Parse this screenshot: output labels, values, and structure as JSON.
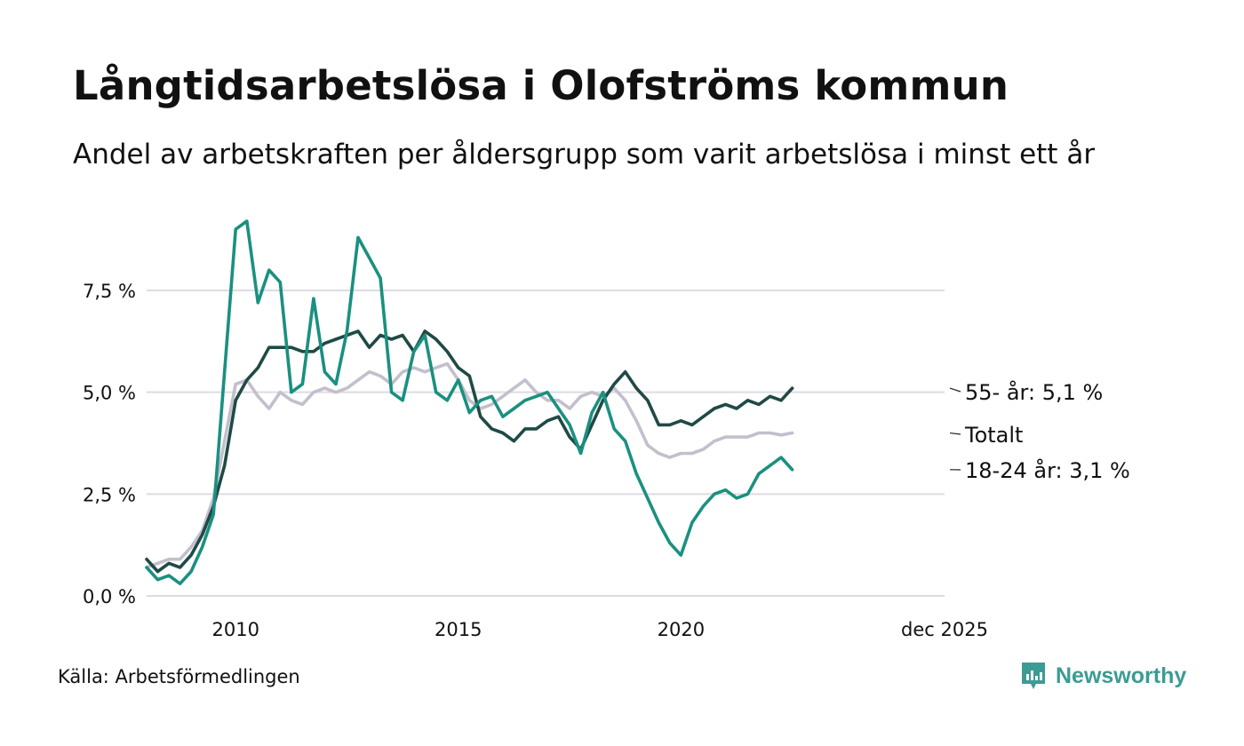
{
  "chart_data": {
    "type": "line",
    "title": "Långtidsarbetslösa i Olofströms kommun",
    "subtitle": "Andel av arbetskraften per åldersgrupp som varit arbetslösa i minst ett år",
    "xlabel": "",
    "ylabel": "",
    "x_start": 2008.0,
    "x_step": 0.25,
    "xlim": [
      2008.0,
      2025.92
    ],
    "ylim": [
      0,
      9.5
    ],
    "grid": true,
    "y_ticks": [
      {
        "value": 0,
        "label": "0,0 %"
      },
      {
        "value": 2.5,
        "label": "2,5 %"
      },
      {
        "value": 5,
        "label": "5,0 %"
      },
      {
        "value": 7.5,
        "label": "7,5 %"
      }
    ],
    "x_ticks": [
      {
        "value": 2010,
        "label": "2010"
      },
      {
        "value": 2015,
        "label": "2015"
      },
      {
        "value": 2020,
        "label": "2020"
      },
      {
        "value": 2025.92,
        "label": "dec 2025"
      }
    ],
    "series": [
      {
        "name": "Totalt",
        "label": "Totalt",
        "color": "#c3bfcc",
        "values": [
          0.7,
          0.8,
          0.9,
          0.9,
          1.2,
          1.6,
          2.4,
          3.8,
          5.2,
          5.3,
          4.9,
          4.6,
          5.0,
          4.8,
          4.7,
          5.0,
          5.1,
          5.0,
          5.1,
          5.3,
          5.5,
          5.4,
          5.2,
          5.5,
          5.6,
          5.5,
          5.6,
          5.7,
          5.3,
          4.8,
          4.6,
          4.7,
          4.9,
          5.1,
          5.3,
          5.0,
          4.8,
          4.8,
          4.6,
          4.9,
          5.0,
          4.9,
          5.1,
          4.8,
          4.3,
          3.7,
          3.5,
          3.4,
          3.5,
          3.5,
          3.6,
          3.8,
          3.9,
          3.9,
          3.9,
          4.0,
          4.0,
          3.95,
          4.0
        ]
      },
      {
        "name": "55- år",
        "label": "55- år: 5,1 %",
        "color": "#1f4a45",
        "values": [
          0.9,
          0.6,
          0.8,
          0.7,
          1.0,
          1.5,
          2.2,
          3.2,
          4.8,
          5.3,
          5.6,
          6.1,
          6.1,
          6.1,
          6.0,
          6.0,
          6.2,
          6.3,
          6.4,
          6.5,
          6.1,
          6.4,
          6.3,
          6.4,
          6.0,
          6.5,
          6.3,
          6.0,
          5.6,
          5.4,
          4.4,
          4.1,
          4.0,
          3.8,
          4.1,
          4.1,
          4.3,
          4.4,
          3.9,
          3.6,
          4.2,
          4.8,
          5.2,
          5.5,
          5.1,
          4.8,
          4.2,
          4.2,
          4.3,
          4.2,
          4.4,
          4.6,
          4.7,
          4.6,
          4.8,
          4.7,
          4.9,
          4.8,
          5.1
        ]
      },
      {
        "name": "18-24 år",
        "label": "18-24 år: 3,1 %",
        "color": "#1a9080",
        "values": [
          0.7,
          0.4,
          0.5,
          0.3,
          0.6,
          1.2,
          2.0,
          5.5,
          9.0,
          9.2,
          7.2,
          8.0,
          7.7,
          5.0,
          5.2,
          7.3,
          5.5,
          5.2,
          6.5,
          8.8,
          8.3,
          7.8,
          5.0,
          4.8,
          6.0,
          6.4,
          5.0,
          4.8,
          5.3,
          4.5,
          4.8,
          4.9,
          4.4,
          4.6,
          4.8,
          4.9,
          5.0,
          4.6,
          4.2,
          3.5,
          4.5,
          5.0,
          4.1,
          3.8,
          3.0,
          2.4,
          1.8,
          1.3,
          1.0,
          1.8,
          2.2,
          2.5,
          2.6,
          2.4,
          2.5,
          3.0,
          3.2,
          3.4,
          3.1
        ]
      }
    ]
  },
  "source": "Källa: Arbetsförmedlingen",
  "brand": "Newsworthy"
}
